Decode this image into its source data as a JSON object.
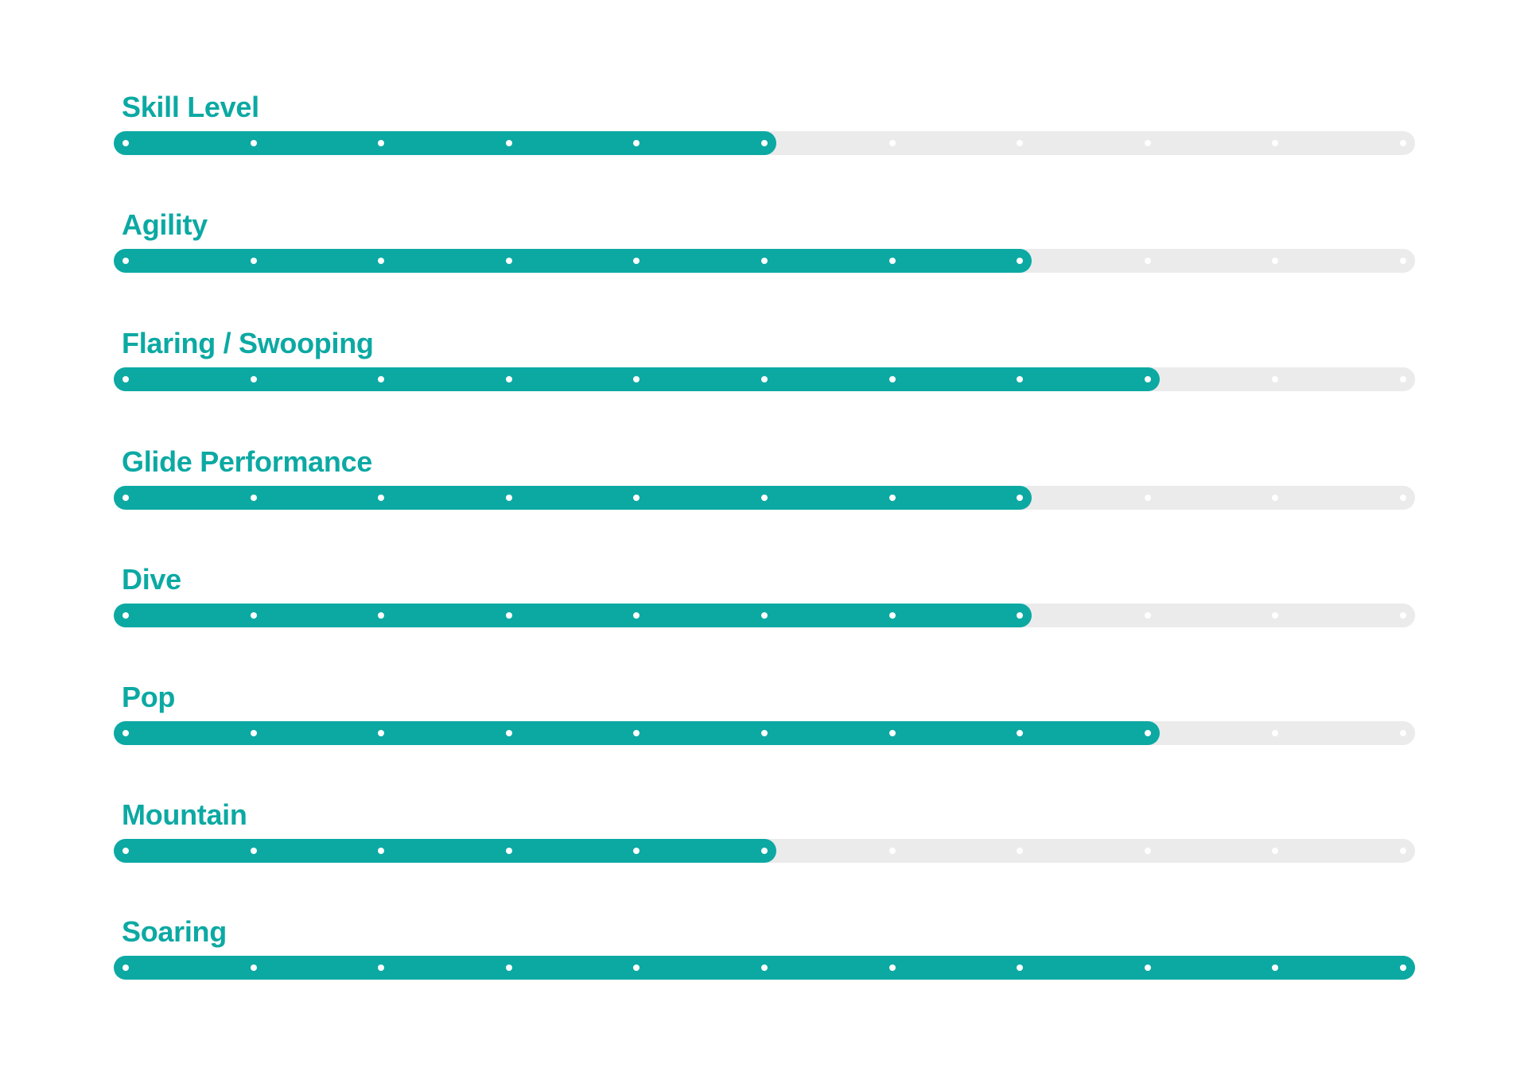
{
  "colors": {
    "fill_teal": "#0ca9a3",
    "track_gray": "#ebebeb",
    "tick_dot": "#ffffff",
    "label_text": "#0ca9a3",
    "background": "#ffffff"
  },
  "rows": [
    {
      "label": "Skill Level",
      "filled_dots": 6
    },
    {
      "label": "Agility",
      "filled_dots": 8
    },
    {
      "label": "Flaring / Swooping",
      "filled_dots": 9
    },
    {
      "label": "Glide Performance",
      "filled_dots": 8
    },
    {
      "label": "Dive",
      "filled_dots": 8
    },
    {
      "label": "Pop",
      "filled_dots": 9
    },
    {
      "label": "Mountain",
      "filled_dots": 6
    },
    {
      "label": "Soaring",
      "filled_dots": 11
    }
  ],
  "chart_data": {
    "type": "bar",
    "orientation": "horizontal",
    "title": "",
    "categories": [
      "Skill Level",
      "Agility",
      "Flaring / Swooping",
      "Glide Performance",
      "Dive",
      "Pop",
      "Mountain",
      "Soaring"
    ],
    "values": [
      6,
      8,
      9,
      8,
      8,
      9,
      6,
      11
    ],
    "value_unit": "filled tick dots",
    "dots_per_bar": 11,
    "scale_min": 1,
    "scale_max": 11,
    "grid": false,
    "legend": false,
    "bar_style": "rounded pill with white tick dots, teal fill over light-gray track"
  }
}
